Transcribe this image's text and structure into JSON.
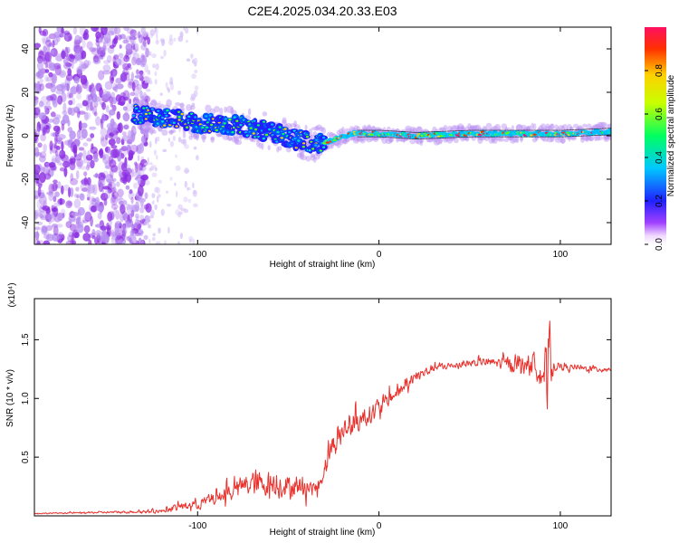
{
  "title": "C2E4.2025.034.20.33.E03",
  "colors": {
    "snr_line": "#e8322d",
    "cloud": "#8a2be2",
    "axis": "#000000"
  },
  "chart_data": [
    {
      "type": "heatmap",
      "name": "spectrogram",
      "xlabel": "Height of straight line (km)",
      "ylabel": "Frequency (Hz)",
      "xlim": [
        -190,
        128
      ],
      "ylim": [
        -50,
        50
      ],
      "x_ticks": [
        -100,
        0,
        100
      ],
      "y_ticks": [
        -40,
        -20,
        0,
        20,
        40
      ],
      "ridge": {
        "description_points_x": [
          -135,
          -120,
          -100,
          -80,
          -60,
          -45,
          -35,
          -25,
          -15,
          0,
          20,
          50,
          80,
          100,
          128
        ],
        "description_points_y": [
          10,
          8,
          6,
          5,
          2,
          -2,
          -4,
          -2,
          1,
          1,
          0,
          1,
          1,
          1,
          2
        ]
      },
      "noise_region_x": [
        -190,
        -135
      ]
    },
    {
      "type": "colorbar",
      "name": "amplitude-colorbar",
      "label": "Normalized spectral amplitude",
      "range": [
        0.0,
        1.0
      ],
      "ticks": [
        "0.0",
        "0.2",
        "0.4",
        "0.6",
        "0.8"
      ],
      "tick_values": [
        0.0,
        0.2,
        0.4,
        0.6,
        0.8
      ]
    },
    {
      "type": "line",
      "name": "snr",
      "xlabel": "Height of straight line (km)",
      "ylabel": "SNR (10 * v/v)",
      "multiplier": "(x10⁴)",
      "xlim": [
        -190,
        128
      ],
      "ylim": [
        0,
        1.85
      ],
      "x_ticks": [
        -100,
        0,
        100
      ],
      "y_ticks": [
        0.5,
        1.0,
        1.5
      ],
      "y_tick_labels": [
        "0.5",
        "1.0",
        "1.5"
      ],
      "series": [
        {
          "name": "SNR",
          "x": [
            -190,
            -150,
            -120,
            -110,
            -100,
            -90,
            -80,
            -70,
            -60,
            -50,
            -40,
            -35,
            -32,
            -28,
            -20,
            -10,
            0,
            10,
            20,
            30,
            40,
            50,
            60,
            70,
            80,
            88,
            92,
            93,
            94,
            95,
            96,
            100,
            110,
            120,
            128
          ],
          "values": [
            0.02,
            0.03,
            0.04,
            0.08,
            0.1,
            0.15,
            0.22,
            0.28,
            0.27,
            0.25,
            0.25,
            0.24,
            0.3,
            0.55,
            0.72,
            0.82,
            0.92,
            1.05,
            1.18,
            1.26,
            1.28,
            1.3,
            1.31,
            1.3,
            1.3,
            1.28,
            1.2,
            0.95,
            1.7,
            1.1,
            1.28,
            1.27,
            1.26,
            1.25,
            1.25
          ],
          "noise_amplitude": [
            0.005,
            0.01,
            0.02,
            0.04,
            0.06,
            0.08,
            0.1,
            0.14,
            0.14,
            0.12,
            0.1,
            0.1,
            0.1,
            0.15,
            0.12,
            0.12,
            0.1,
            0.08,
            0.06,
            0.05,
            0.04,
            0.04,
            0.05,
            0.07,
            0.09,
            0.15,
            0.35,
            0.35,
            0.15,
            0.12,
            0.06,
            0.04,
            0.03,
            0.03,
            0.03
          ]
        }
      ]
    }
  ]
}
